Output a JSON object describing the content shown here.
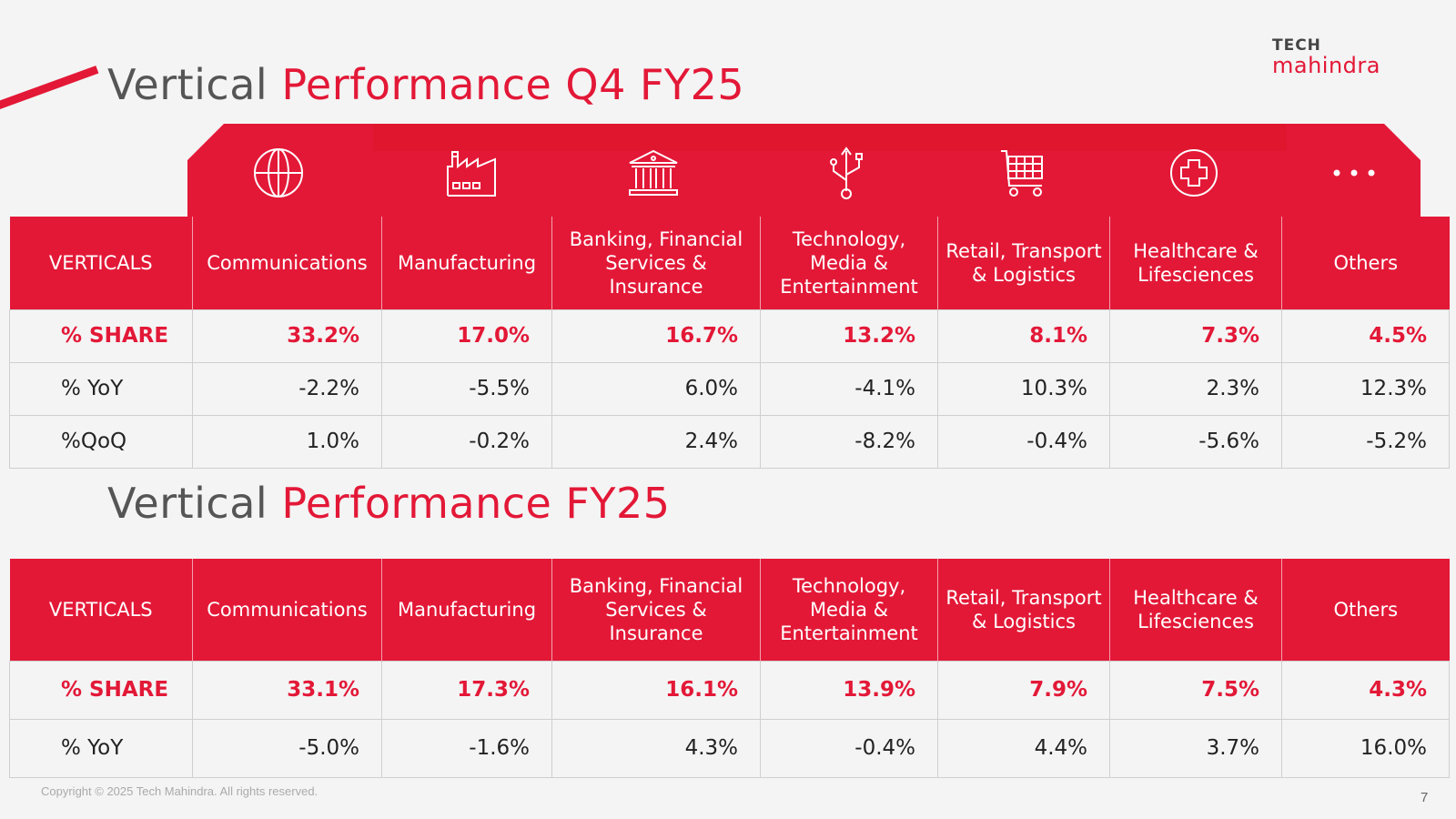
{
  "title_q4": {
    "dark": "Vertical",
    "red": "Performance Q4 FY25"
  },
  "title_fy": {
    "dark": "Vertical",
    "red": "Performance FY25"
  },
  "logo": {
    "line1": "TECH",
    "line2": "mahindra"
  },
  "colors": {
    "brand_red": "#e31837",
    "title_grey": "#555555"
  },
  "icons": [
    "globe-icon",
    "factory-icon",
    "bank-icon",
    "usb-icon",
    "shopping-cart-icon",
    "medical-cross-icon",
    "more-dots-icon"
  ],
  "headers": [
    "VERTICALS",
    "Communications",
    "Manufacturing",
    "Banking, Financial Services & Insurance",
    "Technology, Media & Entertainment",
    "Retail, Transport & Logistics",
    "Healthcare & Lifesciences",
    "Others"
  ],
  "q4": {
    "rows": [
      {
        "label": "% SHARE",
        "values": [
          "33.2%",
          "17.0%",
          "16.7%",
          "13.2%",
          "8.1%",
          "7.3%",
          "4.5%"
        ]
      },
      {
        "label": "% YoY",
        "values": [
          "-2.2%",
          "-5.5%",
          "6.0%",
          "-4.1%",
          "10.3%",
          "2.3%",
          "12.3%"
        ]
      },
      {
        "label": "%QoQ",
        "values": [
          "1.0%",
          "-0.2%",
          "2.4%",
          "-8.2%",
          "-0.4%",
          "-5.6%",
          "-5.2%"
        ]
      }
    ]
  },
  "fy": {
    "rows": [
      {
        "label": "% SHARE",
        "values": [
          "33.1%",
          "17.3%",
          "16.1%",
          "13.9%",
          "7.9%",
          "7.5%",
          "4.3%"
        ]
      },
      {
        "label": "% YoY",
        "values": [
          "-5.0%",
          "-1.6%",
          "4.3%",
          "-0.4%",
          "4.4%",
          "3.7%",
          "16.0%"
        ]
      }
    ]
  },
  "footer": {
    "copyright": "Copyright © 2025 Tech Mahindra. All rights reserved.",
    "page": "7"
  }
}
